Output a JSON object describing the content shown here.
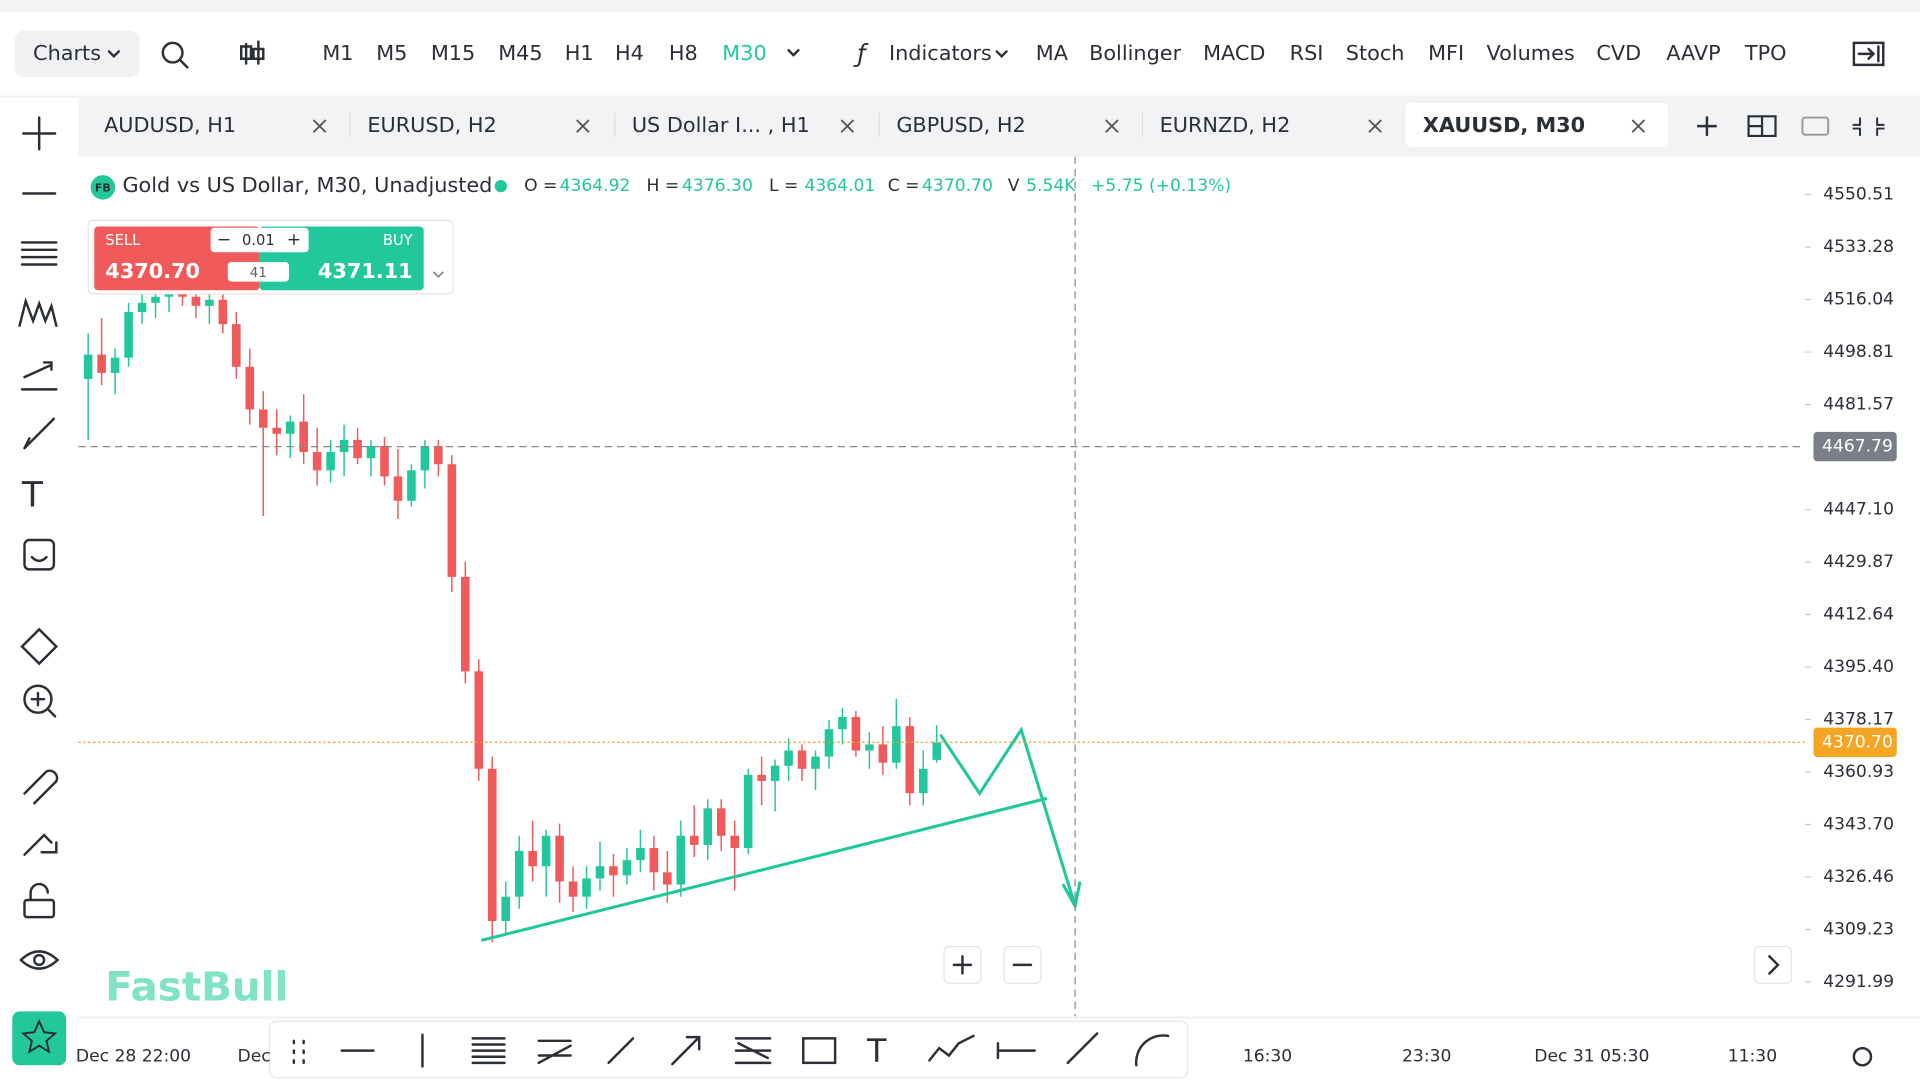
{
  "toolbar": {
    "charts": "Charts",
    "timeframes": [
      "M1",
      "M5",
      "M15",
      "M45",
      "H1",
      "H4",
      "H8",
      "M30"
    ],
    "active_timeframe": 7,
    "indicators_label": "Indicators",
    "indicators": [
      "MA",
      "Bollinger",
      "MACD",
      "RSI",
      "Stoch",
      "MFI",
      "Volumes",
      "CVD",
      "AAVP",
      "TPO"
    ]
  },
  "tabs": {
    "items": [
      "AUDUSD, H1",
      "EURUSD, H2",
      "US Dollar I...   , H1",
      "GBPUSD, H2",
      "EURNZD, H2",
      "XAUUSD, M30"
    ],
    "active": 5
  },
  "legend": {
    "badge": "FB",
    "title": "Gold vs US Dollar, M30, Unadjusted",
    "items": [
      {
        "label": "O =",
        "value": "4364.92"
      },
      {
        "label": "H =",
        "value": "4376.30"
      },
      {
        "label": "L =",
        "value": "4364.01"
      },
      {
        "label": "C =",
        "value": "4370.70"
      },
      {
        "label": "V",
        "value": "5.54K"
      }
    ],
    "change": "+5.75 (+0.13%)"
  },
  "trade": {
    "sell_label": "SELL",
    "sell_price": "4370.70",
    "buy_label": "BUY",
    "buy_price": "4371.11",
    "lot": "0.01",
    "spread": "41"
  },
  "chart": {
    "type": "candlestick",
    "ylim": [
      4280.71,
      4562.17
    ],
    "yticks": [
      4550.51,
      4533.28,
      4516.04,
      4498.81,
      4481.57,
      {
        "value": 4447.1,
        "label": "4447.10"
      },
      4429.87,
      4412.64,
      {
        "value": 4395.4,
        "label": "4395.40"
      },
      4378.17,
      4360.93,
      {
        "value": 4343.7,
        "label": "4343.70"
      },
      4326.46,
      4309.23,
      4291.99
    ],
    "crosshair_price": 4467.79,
    "last_price": {
      "value": 4370.7,
      "label": "4370.70"
    },
    "xlabels": [
      "Dec 28 22:00",
      "Dec",
      "16:30",
      "23:30",
      "Dec 31 05:30",
      "11:30"
    ],
    "candles": [
      [
        4490,
        4505,
        4470,
        4498
      ],
      [
        4498,
        4510,
        4488,
        4492
      ],
      [
        4492,
        4500,
        4485,
        4497
      ],
      [
        4497,
        4515,
        4494,
        4512
      ],
      [
        4512,
        4520,
        4508,
        4515
      ],
      [
        4515,
        4519,
        4510,
        4517
      ],
      [
        4517,
        4521,
        4512,
        4519
      ],
      [
        4519,
        4522,
        4514,
        4517
      ],
      [
        4517,
        4520,
        4510,
        4514
      ],
      [
        4514,
        4519,
        4508,
        4516
      ],
      [
        4516,
        4519,
        4505,
        4508
      ],
      [
        4508,
        4512,
        4490,
        4494
      ],
      [
        4494,
        4500,
        4475,
        4480
      ],
      [
        4480,
        4486,
        4445,
        4474
      ],
      [
        4474,
        4480,
        4465,
        4472
      ],
      [
        4472,
        4478,
        4464,
        4476
      ],
      [
        4476,
        4485,
        4462,
        4466
      ],
      [
        4466,
        4474,
        4455,
        4460
      ],
      [
        4460,
        4470,
        4456,
        4466
      ],
      [
        4466,
        4475,
        4458,
        4470
      ],
      [
        4470,
        4474,
        4462,
        4464
      ],
      [
        4464,
        4470,
        4458,
        4468
      ],
      [
        4468,
        4471,
        4455,
        4458
      ],
      [
        4458,
        4467,
        4444,
        4450
      ],
      [
        4450,
        4462,
        4448,
        4460
      ],
      [
        4460,
        4470,
        4454,
        4468
      ],
      [
        4468,
        4470,
        4458,
        4462
      ],
      [
        4462,
        4465,
        4420,
        4425
      ],
      [
        4425,
        4430,
        4390,
        4394
      ],
      [
        4394,
        4398,
        4358,
        4362
      ],
      [
        4362,
        4366,
        4305,
        4312
      ],
      [
        4312,
        4325,
        4308,
        4320
      ],
      [
        4320,
        4340,
        4316,
        4335
      ],
      [
        4335,
        4345,
        4325,
        4330
      ],
      [
        4330,
        4342,
        4320,
        4340
      ],
      [
        4340,
        4344,
        4318,
        4325
      ],
      [
        4325,
        4330,
        4315,
        4320
      ],
      [
        4320,
        4330,
        4316,
        4326
      ],
      [
        4326,
        4338,
        4322,
        4330
      ],
      [
        4330,
        4334,
        4320,
        4327
      ],
      [
        4327,
        4336,
        4324,
        4332
      ],
      [
        4332,
        4342,
        4328,
        4336
      ],
      [
        4336,
        4340,
        4322,
        4328
      ],
      [
        4328,
        4335,
        4318,
        4324
      ],
      [
        4324,
        4345,
        4320,
        4340
      ],
      [
        4340,
        4350,
        4333,
        4337
      ],
      [
        4337,
        4352,
        4332,
        4349
      ],
      [
        4349,
        4352,
        4335,
        4340
      ],
      [
        4340,
        4345,
        4322,
        4336
      ],
      [
        4336,
        4362,
        4334,
        4360
      ],
      [
        4360,
        4366,
        4350,
        4358
      ],
      [
        4358,
        4365,
        4348,
        4363
      ],
      [
        4363,
        4372,
        4358,
        4368
      ],
      [
        4368,
        4370,
        4358,
        4362
      ],
      [
        4362,
        4368,
        4355,
        4366
      ],
      [
        4366,
        4378,
        4362,
        4375
      ],
      [
        4375,
        4382,
        4370,
        4379
      ],
      [
        4379,
        4381,
        4366,
        4368
      ],
      [
        4368,
        4374,
        4362,
        4370
      ],
      [
        4370,
        4376,
        4360,
        4364
      ],
      [
        4364,
        4385,
        4362,
        4376
      ],
      [
        4376,
        4379,
        4350,
        4354
      ],
      [
        4354,
        4368,
        4350,
        4362
      ],
      [
        4364.92,
        4376.3,
        4364.01,
        4370.7
      ]
    ]
  },
  "watermark": "FastBull"
}
